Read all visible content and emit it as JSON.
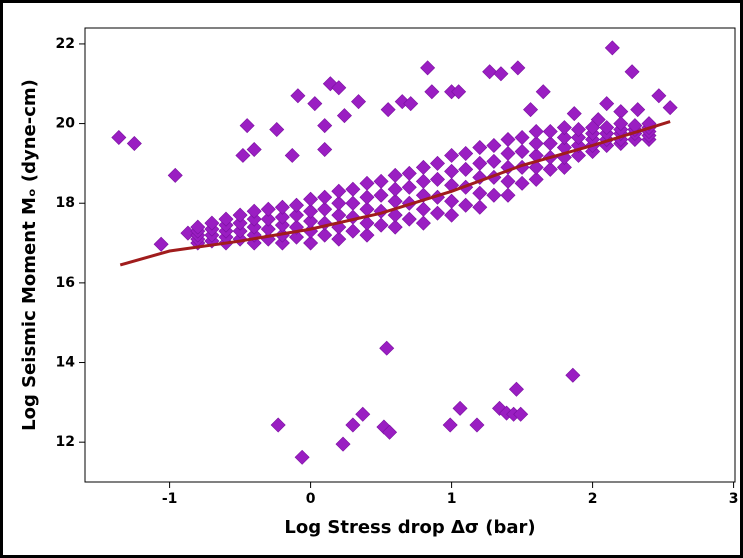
{
  "chart_data": {
    "type": "scatter",
    "xlabel": "Log Stress drop Δσ (bar)",
    "ylabel": "Log Seismic Moment Mₒ (dyne-cm)",
    "xlim": [
      -1.6,
      3.01
    ],
    "ylim": [
      11,
      22.4
    ],
    "xticks": [
      -1,
      0,
      1,
      2,
      3
    ],
    "yticks": [
      12,
      14,
      16,
      18,
      20,
      22
    ],
    "color": "#9a1ec2",
    "x": [
      -1.36,
      -1.25,
      -0.96,
      -1.06,
      -0.87,
      -0.45,
      -0.48,
      -0.4,
      -0.09,
      0.03,
      0.14,
      0.2,
      0.34,
      0.1,
      0.1,
      0.55,
      0.65,
      0.71,
      0.83,
      0.86,
      1.0,
      1.05,
      1.27,
      1.35,
      1.47,
      1.65,
      1.56,
      2.14,
      2.28,
      2.1,
      2.47,
      2.55,
      1.87,
      2.04,
      2.2,
      2.32,
      -0.24,
      -0.13,
      0.24,
      -0.23,
      -0.06,
      0.54,
      0.23,
      0.3,
      0.37,
      0.52,
      0.56,
      0.99,
      1.06,
      1.18,
      1.34,
      1.39,
      1.44,
      1.49,
      1.46,
      1.86,
      -0.8,
      -0.8,
      -0.8,
      -0.8,
      -0.8,
      -0.6,
      -0.6,
      -0.6,
      -0.6,
      -0.6,
      -0.4,
      -0.4,
      -0.4,
      -0.4,
      -0.4,
      -0.2,
      -0.2,
      -0.2,
      -0.2,
      -0.2,
      0,
      0,
      0,
      0,
      0,
      0.2,
      0.2,
      0.2,
      0.2,
      0.2,
      0.4,
      0.4,
      0.4,
      0.4,
      0.4,
      0.6,
      0.6,
      0.6,
      0.6,
      0.6,
      0.8,
      0.8,
      0.8,
      0.8,
      0.8,
      1.0,
      1.0,
      1.0,
      1.0,
      1.0,
      1.2,
      1.2,
      1.2,
      1.2,
      1.2,
      1.4,
      1.4,
      1.4,
      1.4,
      1.4,
      1.6,
      1.6,
      1.6,
      1.6,
      1.6,
      1.8,
      1.8,
      1.8,
      1.8,
      1.8,
      2.0,
      2.0,
      2.0,
      2.0,
      2.0,
      2.2,
      2.2,
      2.2,
      2.2,
      2.2,
      2.4,
      2.4,
      2.4,
      2.4,
      2.4,
      -0.7,
      -0.7,
      -0.7,
      -0.7,
      -0.5,
      -0.5,
      -0.5,
      -0.5,
      -0.3,
      -0.3,
      -0.3,
      -0.3,
      -0.1,
      -0.1,
      -0.1,
      -0.1,
      0.1,
      0.1,
      0.1,
      0.1,
      0.3,
      0.3,
      0.3,
      0.3,
      0.5,
      0.5,
      0.5,
      0.5,
      0.7,
      0.7,
      0.7,
      0.7,
      0.9,
      0.9,
      0.9,
      0.9,
      1.1,
      1.1,
      1.1,
      1.1,
      1.3,
      1.3,
      1.3,
      1.3,
      1.5,
      1.5,
      1.5,
      1.5,
      1.7,
      1.7,
      1.7,
      1.7,
      1.9,
      1.9,
      1.9,
      1.9,
      2.1,
      2.1,
      2.1,
      2.1,
      2.3,
      2.3,
      2.3,
      2.3
    ],
    "values": [
      19.65,
      19.5,
      18.7,
      16.97,
      17.25,
      19.95,
      19.2,
      19.35,
      20.7,
      20.5,
      21.0,
      20.9,
      20.55,
      19.35,
      19.95,
      20.35,
      20.55,
      20.5,
      21.4,
      20.8,
      20.8,
      20.8,
      21.3,
      21.25,
      21.4,
      20.8,
      20.35,
      21.9,
      21.3,
      20.5,
      20.7,
      20.4,
      20.25,
      20.1,
      20.3,
      20.35,
      19.85,
      19.2,
      20.2,
      12.43,
      11.62,
      14.36,
      11.95,
      12.43,
      12.7,
      12.38,
      12.25,
      12.43,
      12.85,
      12.43,
      12.85,
      12.73,
      12.7,
      12.7,
      13.33,
      13.68,
      17.0,
      17.1,
      17.2,
      17.3,
      17.4,
      17.0,
      17.15,
      17.3,
      17.45,
      17.6,
      17.0,
      17.2,
      17.4,
      17.6,
      17.8,
      17.0,
      17.2,
      17.45,
      17.65,
      17.9,
      17.0,
      17.3,
      17.55,
      17.8,
      18.1,
      17.1,
      17.4,
      17.7,
      18.0,
      18.3,
      17.2,
      17.5,
      17.85,
      18.15,
      18.5,
      17.4,
      17.7,
      18.05,
      18.35,
      18.7,
      17.5,
      17.85,
      18.2,
      18.55,
      18.9,
      17.7,
      18.05,
      18.45,
      18.8,
      19.2,
      17.9,
      18.25,
      18.65,
      19.0,
      19.4,
      18.2,
      18.55,
      18.9,
      19.25,
      19.6,
      18.6,
      18.9,
      19.2,
      19.5,
      19.8,
      18.9,
      19.15,
      19.4,
      19.65,
      19.9,
      19.3,
      19.45,
      19.6,
      19.75,
      19.9,
      19.5,
      19.6,
      19.75,
      19.85,
      20.0,
      19.6,
      19.7,
      19.8,
      19.9,
      20.0,
      17.05,
      17.2,
      17.35,
      17.5,
      17.1,
      17.3,
      17.5,
      17.7,
      17.1,
      17.35,
      17.6,
      17.85,
      17.15,
      17.4,
      17.7,
      17.95,
      17.2,
      17.5,
      17.85,
      18.15,
      17.3,
      17.65,
      18.0,
      18.35,
      17.45,
      17.8,
      18.2,
      18.55,
      17.6,
      18.0,
      18.4,
      18.75,
      17.75,
      18.15,
      18.6,
      19.0,
      17.95,
      18.4,
      18.85,
      19.25,
      18.2,
      18.65,
      19.05,
      19.45,
      18.5,
      18.9,
      19.3,
      19.65,
      18.85,
      19.15,
      19.5,
      19.8,
      19.2,
      19.45,
      19.65,
      19.85,
      19.45,
      19.6,
      19.75,
      19.9,
      19.6,
      19.75,
      19.85,
      19.95
    ],
    "fit": {
      "color": "#a01c1c",
      "x": [
        -1.35,
        -1,
        -0.5,
        0,
        0.5,
        1,
        1.5,
        2,
        2.55
      ],
      "values": [
        16.45,
        16.8,
        17.05,
        17.35,
        17.75,
        18.3,
        18.95,
        19.45,
        20.05
      ]
    }
  }
}
